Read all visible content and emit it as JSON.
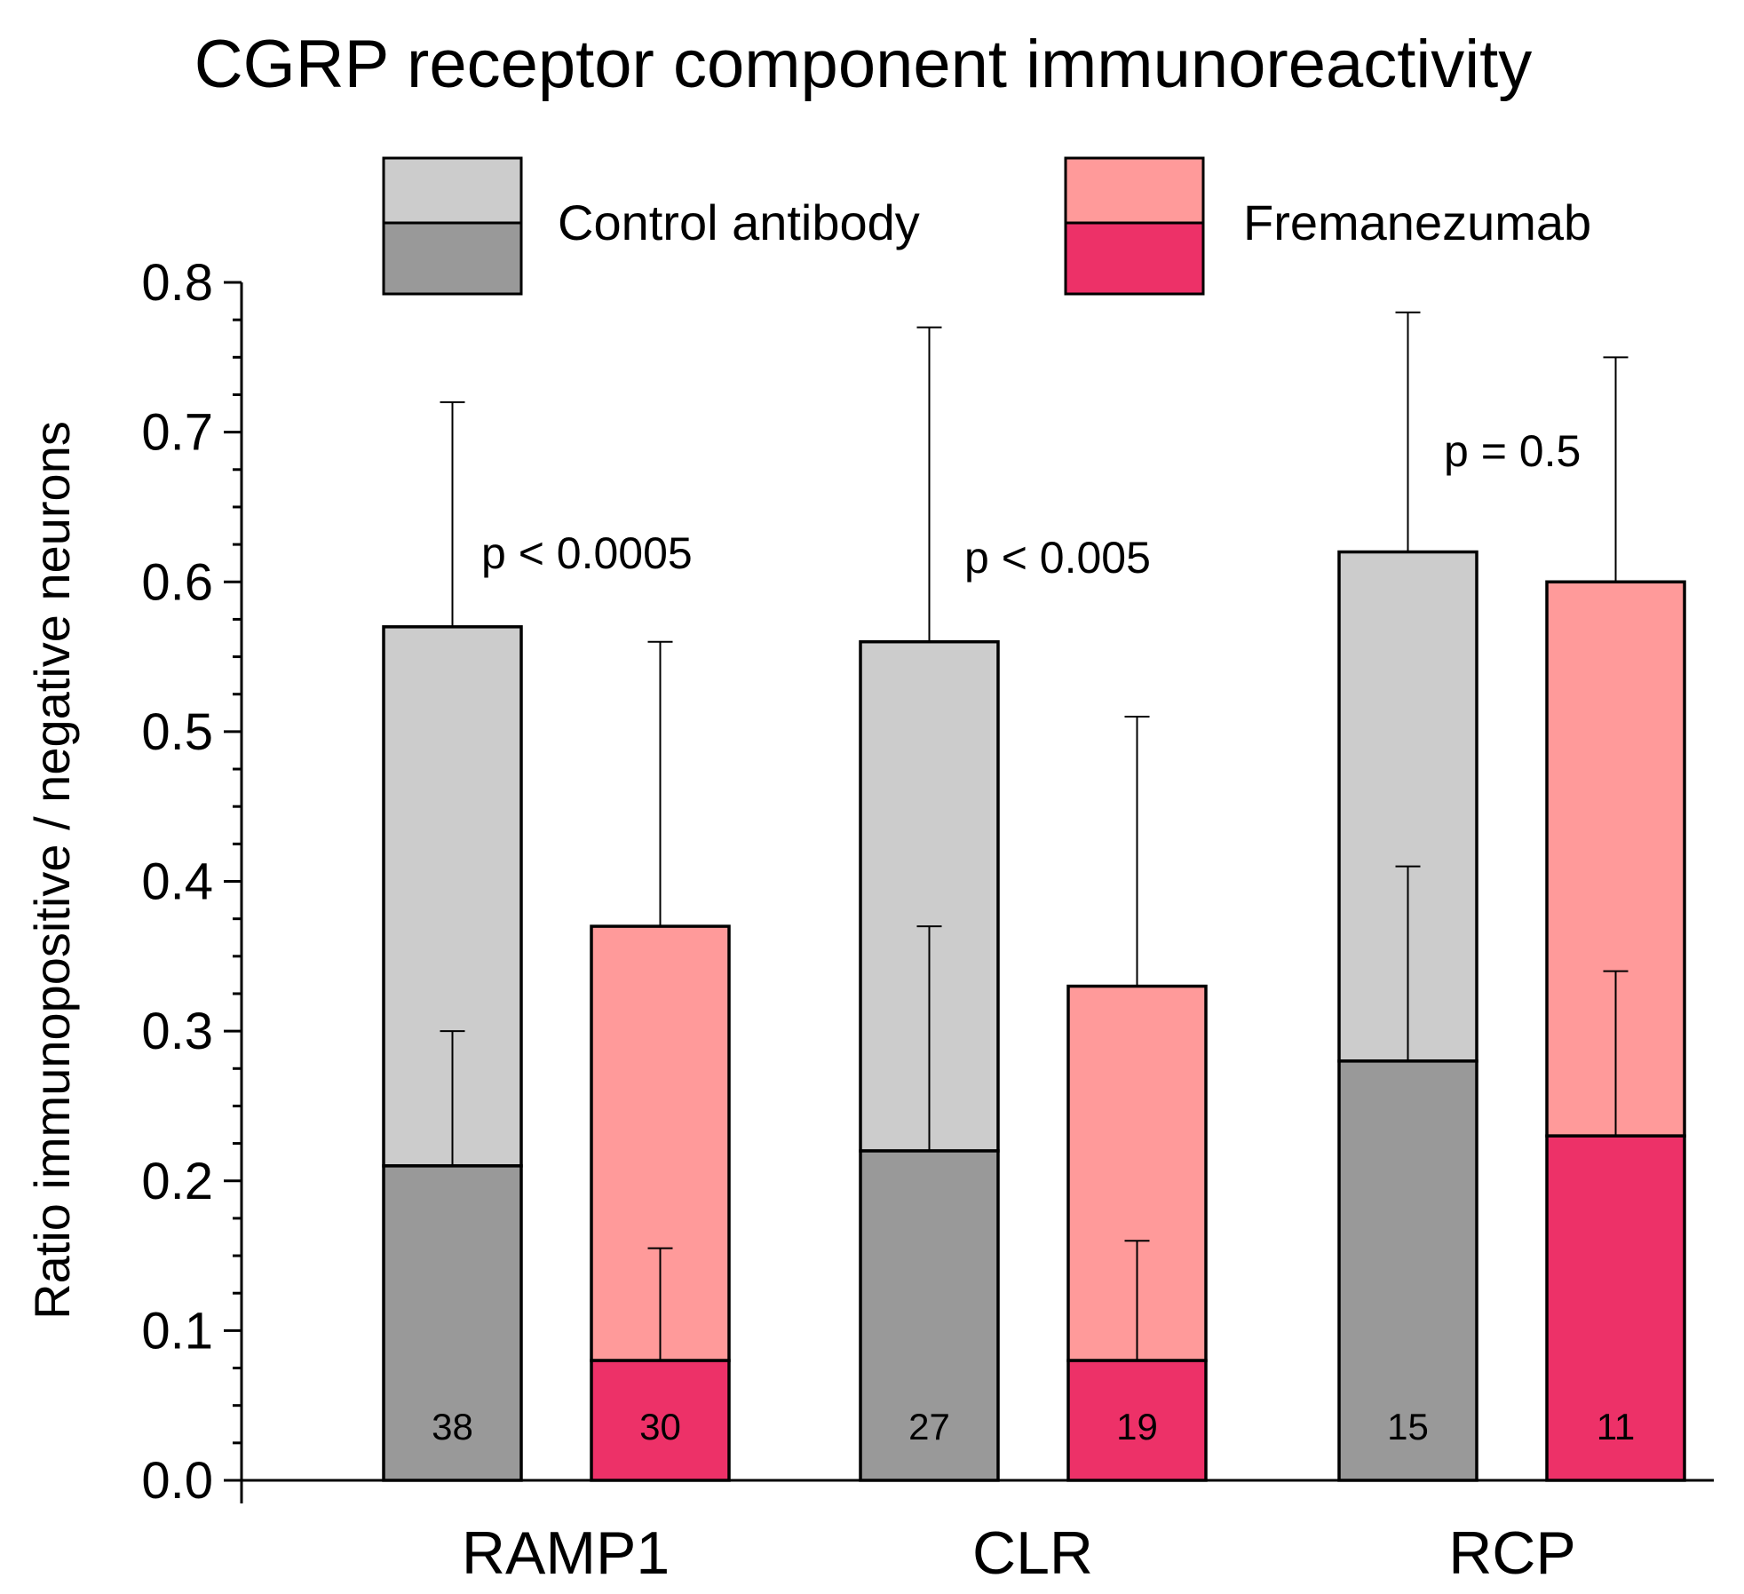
{
  "chart_data": {
    "type": "bar",
    "subtype": "grouped-stacked",
    "title": "CGRP receptor component immunoreactivity",
    "xlabel": "",
    "ylabel": "Ratio immunopositive / negative neurons",
    "ylim": [
      0,
      0.8
    ],
    "yticks": [
      "0.0",
      "0.1",
      "0.2",
      "0.3",
      "0.4",
      "0.5",
      "0.6",
      "0.7",
      "0.8"
    ],
    "categories": [
      "RAMP1",
      "CLR",
      "RCP"
    ],
    "series": [
      {
        "name": "Control antibody",
        "colors": {
          "upper": "#cccccc",
          "lower": "#999999"
        },
        "total": [
          0.57,
          0.56,
          0.62
        ],
        "total_err": [
          0.72,
          0.77,
          0.78
        ],
        "lower": [
          0.21,
          0.22,
          0.28
        ],
        "lower_err": [
          0.3,
          0.37,
          0.41
        ],
        "n": [
          "38",
          "27",
          "15"
        ]
      },
      {
        "name": "Fremanezumab",
        "colors": {
          "upper": "#ff9a9a",
          "lower": "#ed3168"
        },
        "total": [
          0.37,
          0.33,
          0.6
        ],
        "total_err": [
          0.56,
          0.51,
          0.75
        ],
        "lower": [
          0.08,
          0.08,
          0.23
        ],
        "lower_err": [
          0.155,
          0.16,
          0.34
        ],
        "n": [
          "30",
          "19",
          "11"
        ]
      }
    ],
    "annotations": [
      "p < 0.0005",
      "p < 0.005",
      "p = 0.5"
    ]
  }
}
